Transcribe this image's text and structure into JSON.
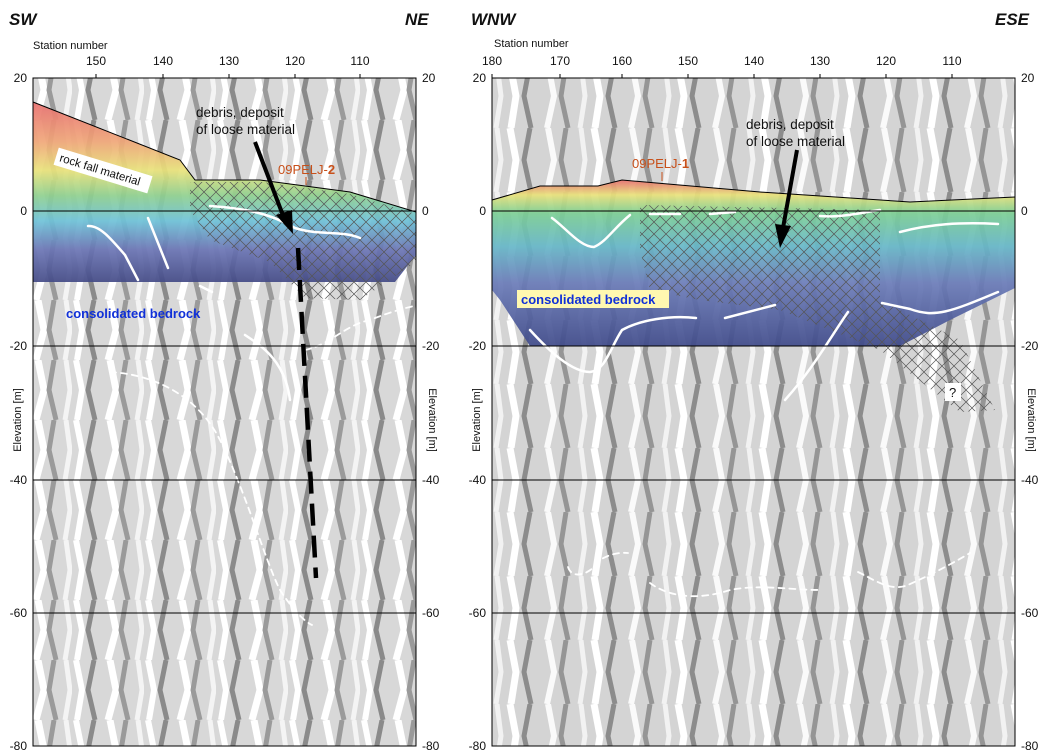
{
  "colors": {
    "well_label": "#c8501a",
    "bedrock_label": "#1030d8",
    "bedrock_label_bg": "#fff8b0"
  },
  "left": {
    "dir_left": "SW",
    "dir_right": "NE",
    "station_title": "Station number",
    "stations": [
      "150",
      "140",
      "130",
      "120",
      "110"
    ],
    "elev": [
      "20",
      "0",
      "-20",
      "-40",
      "-60",
      "-80"
    ],
    "y_label_left": "Elevation [m]",
    "y_label_right": "Elevation [m]",
    "rock_fall": "rock fall material",
    "debris_1": "debris, deposit",
    "debris_2": "of loose material",
    "well_prefix": "09PELJ-",
    "well_num": "2",
    "bedrock": "consolidated bedrock"
  },
  "right": {
    "dir_left": "WNW",
    "dir_right": "ESE",
    "station_title": "Station number",
    "stations": [
      "180",
      "170",
      "160",
      "150",
      "140",
      "130",
      "120",
      "110"
    ],
    "elev": [
      "20",
      "0",
      "-20",
      "-40",
      "-60",
      "-80"
    ],
    "y_label_left": "Elevation [m]",
    "y_label_right": "Elevation [m]",
    "debris_1": "debris, deposit",
    "debris_2": "of loose material",
    "well_prefix": "09PELJ-",
    "well_num": "1",
    "bedrock": "consolidated bedrock",
    "question": "?"
  }
}
